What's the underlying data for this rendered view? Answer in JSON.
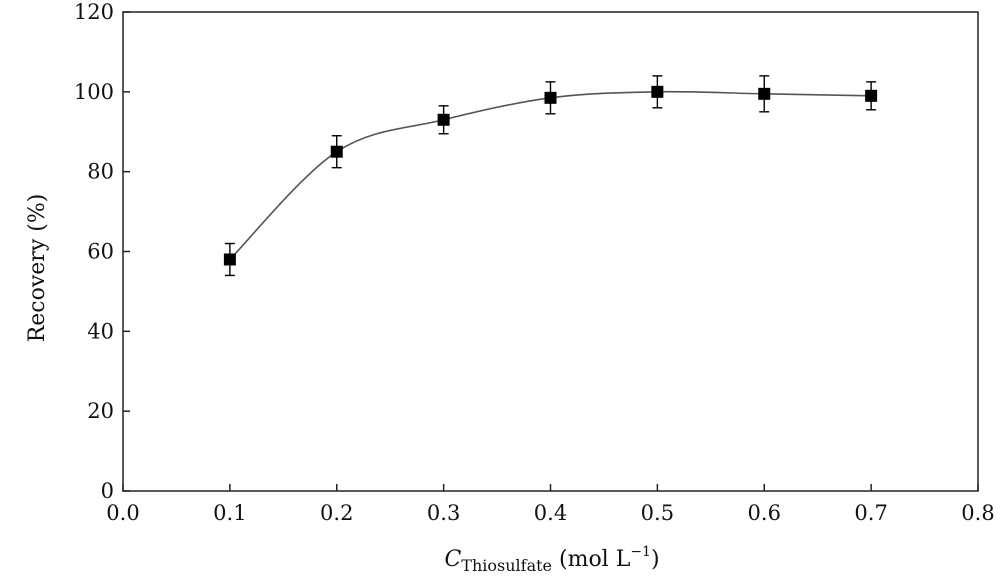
{
  "chart_data": {
    "type": "line",
    "x": [
      0.1,
      0.2,
      0.3,
      0.4,
      0.5,
      0.6,
      0.7
    ],
    "series": [
      {
        "values": [
          58,
          85,
          93,
          98.5,
          100,
          99.5,
          99
        ],
        "error": [
          4,
          4,
          3.5,
          4,
          4,
          4.5,
          3.5
        ]
      }
    ],
    "xlim": [
      0.0,
      0.8
    ],
    "ylim": [
      0,
      120
    ],
    "xticks": [
      "0.0",
      "0.1",
      "0.2",
      "0.3",
      "0.4",
      "0.5",
      "0.6",
      "0.7",
      "0.8"
    ],
    "yticks": [
      "0",
      "20",
      "40",
      "60",
      "80",
      "100",
      "120"
    ],
    "ylabel": "Recovery (%)",
    "xlabel": {
      "symbol": "C",
      "subscript": "Thiosulfate",
      "unit_open": " (mol L",
      "exponent": "−1",
      "unit_close": ")"
    },
    "grid": false,
    "legend": false,
    "marker": "square",
    "line_color": "#555555",
    "marker_color": "#000000"
  }
}
